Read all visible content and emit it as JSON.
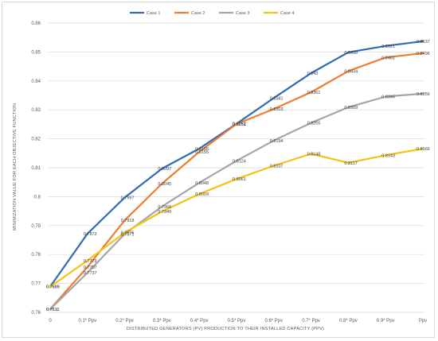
{
  "chart_data": {
    "type": "line",
    "title": "",
    "xlabel": "DISTRIBUTED GENERATORS (PV) PRODUCTION TO THEIR INSTALLED CAPACITY (PPV)",
    "ylabel": "MINIMIZATION VALUE FOR EACH OBJECTIVE FUNCTION",
    "categories": [
      "0",
      "0.1* Ppv",
      "0.2* Ppv",
      "0.3* Ppv",
      "0.4* Ppv",
      "0.5* Ppv",
      "0.6* Ppv",
      "0.7* Ppv",
      "0.8* Ppv",
      "0.9* Ppv",
      "Ppv"
    ],
    "ylim": [
      0.76,
      0.86
    ],
    "yticks": [
      "0.76",
      "0.77",
      "0.78",
      "0.79",
      "0.8",
      "0.81",
      "0.82",
      "0.83",
      "0.84",
      "0.85",
      "0.86"
    ],
    "grid": true,
    "legend_position": "top",
    "series": [
      {
        "name": "Case 1",
        "color": "#2e6db5",
        "values": [
          0.7689,
          0.7872,
          0.7997,
          0.8097,
          0.8166,
          0.8252,
          0.8341,
          0.8427,
          0.8499,
          0.8521,
          0.8537
        ],
        "labels": [
          "0.7689",
          "0.7872",
          "0.7997",
          "0.8097",
          "0.8166",
          "0.8252",
          "0.8341",
          "0.843",
          "0.8499",
          "0.8521",
          "0.8537"
        ]
      },
      {
        "name": "Case 2",
        "color": "#ed7d31",
        "values": [
          0.7611,
          0.7757,
          0.7918,
          0.8045,
          0.8155,
          0.8251,
          0.8303,
          0.8361,
          0.8434,
          0.8481,
          0.8496
        ],
        "labels": [
          "0.7611",
          "0.7757",
          "0.7918",
          "0.8045",
          "0.8155",
          "0.8251",
          "0.8303",
          "0.8361",
          "0.8434",
          "0.8481",
          "0.8496"
        ]
      },
      {
        "name": "Case 3",
        "color": "#a5a5a5",
        "values": [
          0.7611,
          0.7737,
          0.7871,
          0.7966,
          0.8048,
          0.8124,
          0.8194,
          0.8255,
          0.8309,
          0.8346,
          0.8356
        ],
        "labels": [
          "0.7611",
          "0.7737",
          "0.7871",
          "0.7966",
          "0.8048",
          "0.8124",
          "0.8194",
          "0.8255",
          "0.8309",
          "0.8346",
          "0.8356"
        ]
      },
      {
        "name": "Case 4",
        "color": "#f2c314",
        "values": [
          0.7689,
          0.7779,
          0.7876,
          0.7949,
          0.8009,
          0.8061,
          0.8107,
          0.8148,
          0.8117,
          0.8143,
          0.8166
        ],
        "labels": [
          "0.7689",
          "0.7779",
          "0.7876",
          "0.7949",
          "0.8009",
          "0.8061",
          "0.8107",
          "0.8148",
          "0.8117",
          "0.8143",
          "0.8166"
        ]
      }
    ]
  }
}
